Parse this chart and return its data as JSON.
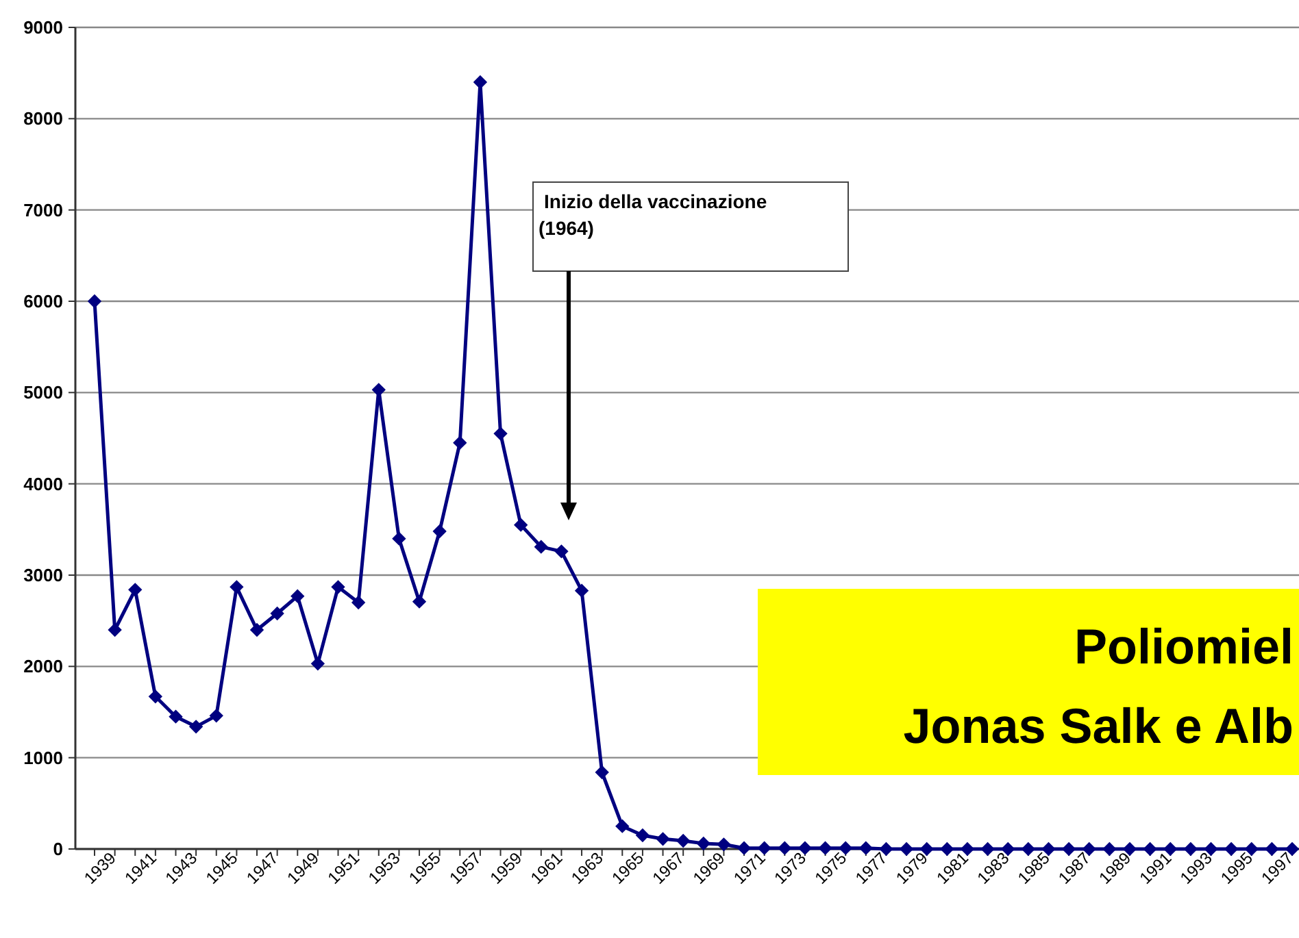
{
  "chart_data": {
    "type": "line",
    "categories": [
      "1939",
      null,
      "1941",
      null,
      "1943",
      null,
      "1945",
      null,
      "1947",
      null,
      "1949",
      null,
      "1951",
      null,
      "1953",
      null,
      "1955",
      null,
      "1957",
      null,
      "1959",
      null,
      "1961",
      null,
      "1963",
      null,
      "1965",
      null,
      "1967",
      null,
      "1969",
      null,
      "1971",
      null,
      "1973",
      null,
      "1975",
      null,
      "1977",
      null,
      "1979",
      null,
      "1981",
      null,
      "1983",
      null,
      "1985",
      null,
      "1987",
      null,
      "1989",
      null,
      "1991",
      null,
      "1993",
      null,
      "1995",
      null,
      "1997",
      null
    ],
    "series": [
      {
        "color": "#000080",
        "values": [
          6000,
          2400,
          2840,
          1670,
          1450,
          1340,
          1460,
          2870,
          2400,
          2580,
          2770,
          2030,
          2870,
          2700,
          5030,
          3400,
          2710,
          3480,
          4450,
          8400,
          4550,
          3550,
          3310,
          3260,
          2830,
          840,
          250,
          150,
          110,
          90,
          60,
          50,
          10,
          10,
          10,
          10,
          10,
          10,
          10,
          0,
          0,
          0,
          0,
          0,
          0,
          0,
          0,
          0,
          0,
          0,
          0,
          0,
          0,
          0,
          0,
          0,
          0,
          0,
          0,
          0
        ]
      }
    ],
    "ylim": [
      0,
      9000
    ],
    "yticks": [
      0,
      1000,
      2000,
      3000,
      4000,
      5000,
      6000,
      7000,
      8000,
      9000
    ],
    "grid": "y",
    "marker": "diamond",
    "line_style": "solid",
    "annotations": [
      "Inizio della vaccinazione\n(1964)",
      "Poliomiel",
      "Jonas Salk e Alb"
    ]
  }
}
